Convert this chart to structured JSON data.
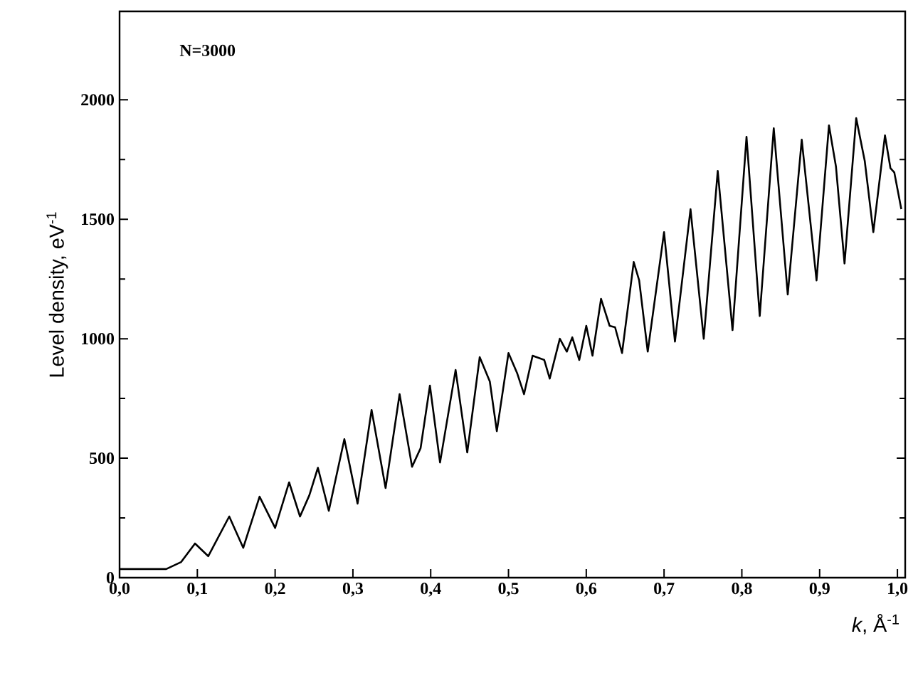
{
  "chart_data": {
    "type": "line",
    "xlabel": "*k*, Å$^{-1}$",
    "ylabel": "Level density, eV$^{-1}$",
    "annotations": [
      "N=3000"
    ],
    "xlim": [
      0,
      1.01
    ],
    "ylim": [
      0,
      2370
    ],
    "xticks": [
      {
        "value": 0,
        "label": "0,0"
      },
      {
        "value": 0.1,
        "label": "0,1"
      },
      {
        "value": 0.2,
        "label": "0,2"
      },
      {
        "value": 0.3,
        "label": "0,3"
      },
      {
        "value": 0.4,
        "label": "0,4"
      },
      {
        "value": 0.5,
        "label": "0,5"
      },
      {
        "value": 0.6,
        "label": "0,6"
      },
      {
        "value": 0.7,
        "label": "0,7"
      },
      {
        "value": 0.8,
        "label": "0,8"
      },
      {
        "value": 0.9,
        "label": "0,9"
      },
      {
        "value": 1.0,
        "label": "1,0"
      }
    ],
    "yticks": [
      0,
      500,
      1000,
      1500,
      2000
    ],
    "series": [
      {
        "color": "#000000",
        "x": [
          0,
          0.06,
          0.079,
          0.097,
          0.114,
          0.141,
          0.159,
          0.18,
          0.2,
          0.218,
          0.232,
          0.244,
          0.255,
          0.269,
          0.289,
          0.306,
          0.324,
          0.342,
          0.36,
          0.376,
          0.387,
          0.399,
          0.412,
          0.432,
          0.447,
          0.463,
          0.476,
          0.485,
          0.5,
          0.511,
          0.52,
          0.531,
          0.546,
          0.553,
          0.566,
          0.575,
          0.582,
          0.591,
          0.6,
          0.608,
          0.619,
          0.63,
          0.637,
          0.646,
          0.661,
          0.668,
          0.679,
          0.7,
          0.714,
          0.734,
          0.751,
          0.769,
          0.788,
          0.806,
          0.823,
          0.841,
          0.859,
          0.877,
          0.896,
          0.912,
          0.921,
          0.932,
          0.947,
          0.958,
          0.969,
          0.984,
          0.991,
          0.996,
          1.005
        ],
        "values": [
          36,
          36,
          65,
          143,
          90,
          256,
          125,
          339,
          208,
          399,
          256,
          345,
          460,
          280,
          580,
          310,
          702,
          375,
          768,
          464,
          542,
          804,
          482,
          869,
          524,
          923,
          821,
          613,
          940,
          857,
          768,
          929,
          911,
          833,
          1000,
          946,
          1006,
          911,
          1054,
          929,
          1167,
          1054,
          1048,
          940,
          1321,
          1244,
          946,
          1446,
          988,
          1542,
          1000,
          1702,
          1036,
          1845,
          1095,
          1881,
          1185,
          1833,
          1244,
          1893,
          1720,
          1315,
          1923,
          1744,
          1446,
          1851,
          1714,
          1696,
          1542
        ]
      }
    ]
  }
}
